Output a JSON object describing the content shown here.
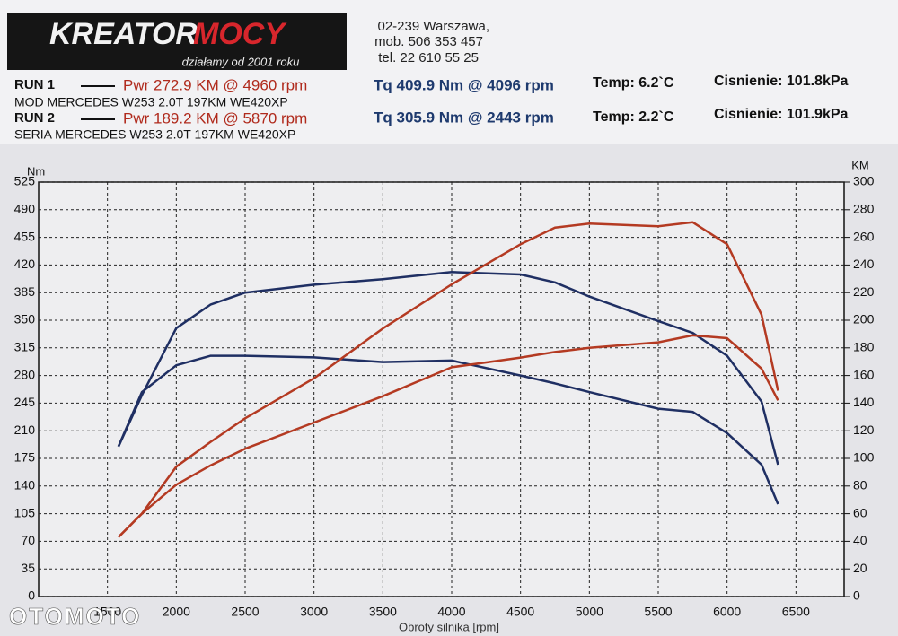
{
  "header": {
    "logo": [
      "KREATOR",
      "MOCY"
    ],
    "slogan": "działamy od 2001 roku",
    "address": [
      "02-239  Warszawa,",
      "mob.  506 353 457",
      "tel.  22 610 55 25"
    ]
  },
  "runs": [
    {
      "label": "RUN 1",
      "power": "Pwr  272.9 KM @ 4960 rpm",
      "torque": "Tq 409.9 Nm @ 4096 rpm",
      "temp": "Temp: 6.2`C",
      "pressure": "Cisnienie: 101.8kPa",
      "car": "MOD MERCEDES W253 2.0T 197KM WE420XP"
    },
    {
      "label": "RUN 2",
      "power": "Pwr  189.2 KM @ 5870 rpm",
      "torque": "Tq 305.9 Nm @ 2443 rpm",
      "temp": "Temp: 2.2`C",
      "pressure": "Cisnienie: 101.9kPa",
      "car": "SERIA MERCEDES W253 2.0T 197KM WE420XP"
    }
  ],
  "watermark": "OTOMOTO",
  "chart_data": {
    "type": "line",
    "y_label": "Nm",
    "y2_label": "KM",
    "x_label": "Obroty silnika [rpm]",
    "grid": true,
    "x": [
      1580,
      1750,
      2000,
      2250,
      2500,
      3000,
      3500,
      4000,
      4500,
      4750,
      5000,
      5500,
      5750,
      6000,
      6250,
      6370
    ],
    "series": [
      {
        "color": "#1f2f63",
        "axis": "y",
        "values": [
          190,
          255,
          340,
          370,
          385,
          395,
          402,
          411,
          408,
          398,
          380,
          349,
          334,
          305,
          247,
          167
        ]
      },
      {
        "color": "#1f2f63",
        "axis": "y",
        "values": [
          190,
          259,
          293,
          305,
          305,
          303,
          297,
          299,
          280,
          270,
          259,
          238,
          234,
          207,
          167,
          117
        ]
      },
      {
        "color": "#b43a22",
        "axis": "y2",
        "values": [
          43,
          60,
          94,
          112,
          129,
          158,
          194,
          226,
          255,
          267,
          270,
          268,
          271,
          255,
          204,
          149
        ]
      },
      {
        "color": "#b43a22",
        "axis": "y2",
        "values": [
          43,
          60,
          81,
          95,
          107,
          126,
          145,
          166,
          173,
          177,
          180,
          184,
          189,
          187,
          165,
          142
        ]
      }
    ],
    "xlim": [
      1000,
      6850
    ],
    "xticks": [
      1500,
      2000,
      2500,
      3000,
      3500,
      4000,
      4500,
      5000,
      5500,
      6000,
      6500
    ],
    "ylim": [
      0,
      525
    ],
    "yticks": [
      0,
      35,
      70,
      105,
      140,
      175,
      210,
      245,
      280,
      315,
      350,
      385,
      420,
      455,
      490,
      525
    ],
    "y2lim": [
      0,
      300
    ],
    "y2ticks": [
      0,
      20,
      40,
      60,
      80,
      100,
      120,
      140,
      160,
      180,
      200,
      220,
      240,
      260,
      280,
      300
    ]
  }
}
